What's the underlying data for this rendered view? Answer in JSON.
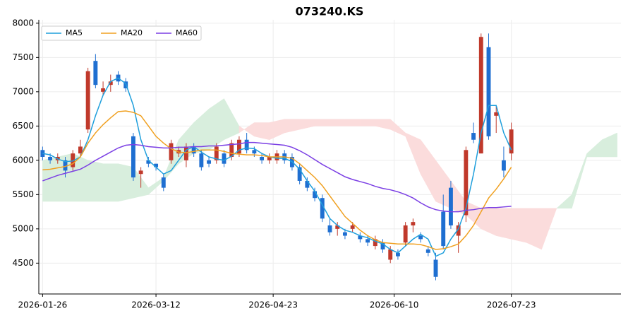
{
  "chart_data": {
    "type": "candlestick",
    "title": "073240.KS",
    "x": [
      0,
      2,
      4,
      6,
      8,
      10,
      12,
      14,
      16,
      18,
      20,
      22,
      24,
      26,
      28,
      30,
      32,
      34,
      36,
      38,
      40,
      42,
      44,
      46,
      48,
      50,
      52,
      54,
      56,
      58,
      60,
      62,
      64,
      66,
      68,
      70,
      72,
      74,
      76,
      78,
      80,
      82,
      84,
      86,
      88,
      90,
      92,
      94,
      96,
      98,
      100,
      102,
      104,
      106,
      108,
      110,
      112,
      114,
      116,
      118,
      120,
      122,
      124
    ],
    "open": [
      6150,
      6050,
      6000,
      6000,
      5900,
      6100,
      6450,
      7450,
      7000,
      7100,
      7250,
      7150,
      6350,
      5800,
      6000,
      5950,
      5750,
      6000,
      6100,
      6000,
      6200,
      6100,
      6000,
      6000,
      6100,
      6050,
      6100,
      6300,
      6150,
      6050,
      6000,
      6000,
      6100,
      6050,
      5900,
      5700,
      5550,
      5450,
      5050,
      5000,
      4950,
      5000,
      4900,
      4850,
      4750,
      4800,
      4550,
      4650,
      4800,
      5050,
      4900,
      4700,
      4550,
      5250,
      5600,
      4900,
      5200,
      6400,
      6100,
      7650,
      6650,
      6000,
      6100
    ],
    "high": [
      6200,
      6100,
      6100,
      6050,
      6150,
      6300,
      7350,
      7550,
      7150,
      7250,
      7300,
      7200,
      6400,
      5900,
      6050,
      5950,
      5800,
      6300,
      6200,
      6250,
      6250,
      6150,
      6050,
      6250,
      6150,
      6300,
      6350,
      6400,
      6200,
      6100,
      6100,
      6150,
      6150,
      6100,
      5950,
      5750,
      5600,
      5500,
      5150,
      5100,
      5000,
      5100,
      4950,
      4900,
      4900,
      4850,
      4750,
      4700,
      5100,
      5150,
      4950,
      4750,
      4650,
      5500,
      5700,
      5100,
      6200,
      6550,
      7850,
      7850,
      6800,
      6200,
      6550
    ],
    "low": [
      6000,
      5950,
      5950,
      5750,
      5850,
      6050,
      6400,
      7050,
      6950,
      7000,
      7100,
      7000,
      5700,
      5600,
      5900,
      5850,
      5550,
      5950,
      6050,
      5900,
      6050,
      5850,
      5900,
      5950,
      5900,
      6000,
      6050,
      6100,
      6050,
      5950,
      5950,
      5950,
      5950,
      5850,
      5650,
      5550,
      5400,
      5100,
      4900,
      4900,
      4850,
      4950,
      4800,
      4750,
      4700,
      4650,
      4500,
      4550,
      4750,
      4950,
      4800,
      4600,
      4250,
      4700,
      5000,
      4650,
      5100,
      6250,
      6100,
      6300,
      6400,
      5750,
      6000
    ],
    "close": [
      6050,
      6000,
      6050,
      5850,
      6100,
      6200,
      7300,
      7100,
      7050,
      7150,
      7150,
      7050,
      5750,
      5850,
      5950,
      5900,
      5600,
      6250,
      6150,
      6200,
      6100,
      5900,
      5950,
      6200,
      5950,
      6250,
      6300,
      6150,
      6100,
      6000,
      6050,
      6100,
      6000,
      5900,
      5700,
      5600,
      5450,
      5150,
      4950,
      5050,
      4900,
      5050,
      4850,
      4800,
      4850,
      4700,
      4700,
      4600,
      5050,
      5100,
      4850,
      4650,
      4300,
      4750,
      5050,
      5050,
      6150,
      6300,
      7800,
      6350,
      6700,
      5850,
      6450
    ],
    "up_color": "#c0392b",
    "down_color": "#1f6fd1",
    "series": [
      {
        "name": "MA5",
        "color": "#1f9fdc",
        "values": [
          6100,
          6080,
          6020,
          5980,
          5990,
          6050,
          6300,
          6650,
          6950,
          7150,
          7200,
          7120,
          6800,
          6300,
          6000,
          5900,
          5800,
          5850,
          6000,
          6150,
          6200,
          6120,
          6050,
          6020,
          6000,
          6060,
          6150,
          6180,
          6170,
          6100,
          6050,
          6030,
          6030,
          5980,
          5870,
          5700,
          5550,
          5350,
          5150,
          5050,
          4980,
          4950,
          4900,
          4870,
          4820,
          4780,
          4700,
          4650,
          4750,
          4850,
          4920,
          4850,
          4600,
          4650,
          4850,
          5000,
          5300,
          5800,
          6400,
          6800,
          6800,
          6400,
          6150
        ]
      },
      {
        "name": "MA20",
        "color": "#f0a020",
        "values": [
          5860,
          5870,
          5890,
          5910,
          5950,
          6050,
          6250,
          6400,
          6520,
          6620,
          6710,
          6720,
          6700,
          6650,
          6500,
          6350,
          6250,
          6170,
          6120,
          6110,
          6130,
          6150,
          6150,
          6150,
          6130,
          6100,
          6090,
          6080,
          6080,
          6070,
          6050,
          6050,
          6050,
          6030,
          5950,
          5850,
          5750,
          5630,
          5480,
          5330,
          5180,
          5080,
          4980,
          4900,
          4840,
          4800,
          4790,
          4780,
          4780,
          4780,
          4770,
          4740,
          4700,
          4710,
          4740,
          4780,
          4900,
          5050,
          5250,
          5450,
          5580,
          5730,
          5900
        ]
      },
      {
        "name": "MA60",
        "color": "#7b3fe4",
        "values": [
          5700,
          5740,
          5780,
          5810,
          5840,
          5870,
          5930,
          6000,
          6060,
          6120,
          6180,
          6220,
          6230,
          6220,
          6200,
          6190,
          6180,
          6180,
          6190,
          6190,
          6200,
          6200,
          6210,
          6210,
          6220,
          6230,
          6240,
          6260,
          6260,
          6250,
          6240,
          6230,
          6220,
          6190,
          6140,
          6080,
          6010,
          5940,
          5880,
          5820,
          5760,
          5720,
          5690,
          5660,
          5620,
          5590,
          5570,
          5540,
          5500,
          5450,
          5380,
          5320,
          5280,
          5260,
          5250,
          5250,
          5270,
          5280,
          5300,
          5310,
          5310,
          5320,
          5330
        ]
      }
    ],
    "cloud": {
      "x": [
        0,
        4,
        8,
        12,
        16,
        20,
        24,
        28,
        32,
        36,
        40,
        44,
        48,
        52,
        56,
        60,
        64,
        68,
        72,
        76,
        80,
        84,
        88,
        92,
        96,
        100,
        104,
        108,
        112,
        116,
        120,
        124,
        128,
        132,
        136,
        140,
        144,
        148,
        152
      ],
      "span_a": [
        6000,
        6050,
        6100,
        6000,
        5950,
        5950,
        5900,
        5600,
        5750,
        6300,
        6550,
        6750,
        6900,
        6500,
        6350,
        6300,
        6400,
        6450,
        6500,
        6500,
        6500,
        6500,
        6500,
        6450,
        6350,
        5800,
        5400,
        5300,
        5200,
        5000,
        4900,
        4850,
        4800,
        4700,
        5300,
        5500,
        6100,
        6300,
        6400
      ],
      "span_b": [
        5400,
        5400,
        5400,
        5400,
        5400,
        5400,
        5450,
        5500,
        5700,
        5950,
        6100,
        6150,
        6300,
        6400,
        6550,
        6550,
        6600,
        6600,
        6600,
        6600,
        6600,
        6600,
        6600,
        6600,
        6400,
        6300,
        6000,
        5700,
        5400,
        5300,
        5300,
        5300,
        5300,
        5300,
        5300,
        5300,
        6050,
        6050,
        6050
      ],
      "bull_color": "#d8eedd",
      "bear_color": "#fbdcdc"
    },
    "xlim": [
      -1,
      153
    ],
    "xticks": [
      {
        "value": 0,
        "label": "2026-01-26"
      },
      {
        "value": 30,
        "label": "2026-03-12"
      },
      {
        "value": 61,
        "label": "2026-04-23"
      },
      {
        "value": 93,
        "label": "2026-06-10"
      },
      {
        "value": 124,
        "label": "2026-07-23"
      }
    ],
    "ylim": [
      4050,
      8050
    ],
    "yticks": [
      4500,
      5000,
      5500,
      6000,
      6500,
      7000,
      7500,
      8000
    ],
    "grid": true,
    "legend": "upper left"
  }
}
